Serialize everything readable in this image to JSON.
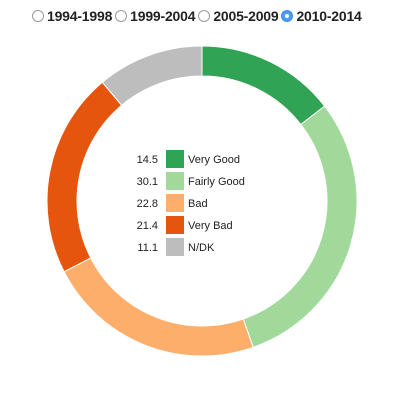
{
  "periods": [
    {
      "label": "1994-1998",
      "selected": false
    },
    {
      "label": "1999-2004",
      "selected": false
    },
    {
      "label": "2005-2009",
      "selected": false
    },
    {
      "label": "2010-2014",
      "selected": true
    }
  ],
  "chart_data": {
    "type": "pie",
    "variant": "donut",
    "categories": [
      "Very Good",
      "Fairly Good",
      "Bad",
      "Very Bad",
      "N/DK"
    ],
    "values": [
      14.5,
      30.1,
      22.8,
      21.4,
      11.1
    ],
    "colors": [
      "#31a354",
      "#a1d99b",
      "#fdae6b",
      "#e6550d",
      "#bdbdbd"
    ],
    "legend_placement": "center",
    "title": "",
    "start_angle": "top, clockwise"
  }
}
